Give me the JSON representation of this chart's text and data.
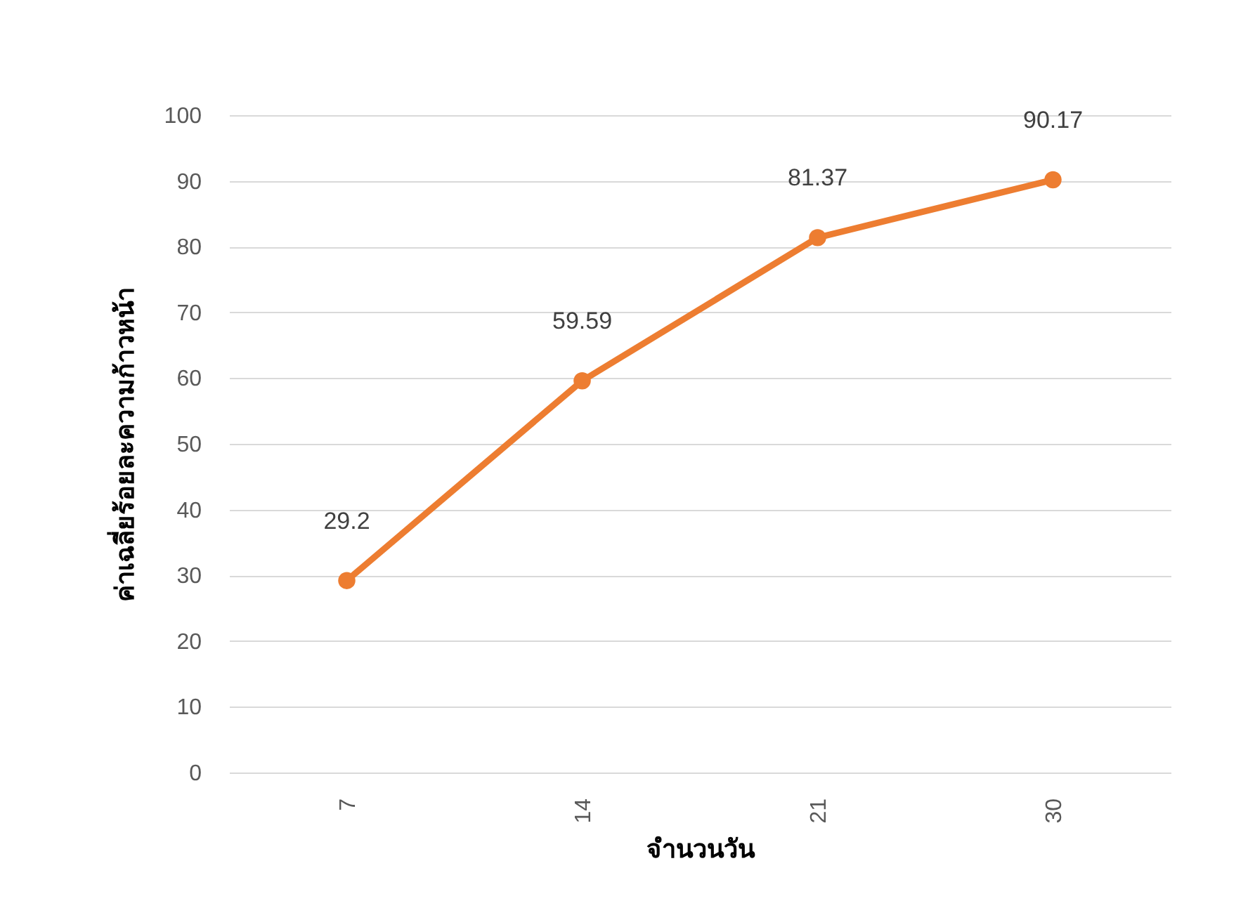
{
  "chart_data": {
    "type": "line",
    "xlabel": "จำนวนวัน",
    "ylabel": "ค่าเฉลี่ยร้อยละความก้าวหน้า",
    "categories": [
      "7",
      "14",
      "21",
      "30"
    ],
    "series": [
      {
        "color": "#ed7d31",
        "values": [
          29.2,
          59.59,
          81.37,
          90.17
        ]
      }
    ],
    "ylim": [
      0,
      100
    ],
    "yticks": [
      0,
      10,
      20,
      30,
      40,
      50,
      60,
      70,
      80,
      90,
      100
    ],
    "grid": "y",
    "marker": "circle",
    "line_style": "solid",
    "data_labels": true,
    "legend": false
  }
}
